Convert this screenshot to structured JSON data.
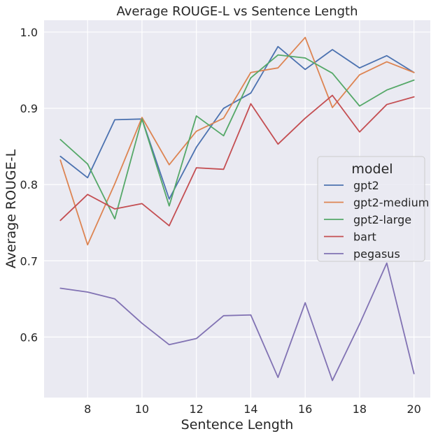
{
  "chart_data": {
    "type": "line",
    "title": "Average ROUGE-L vs Sentence Length",
    "xlabel": "Sentence Length",
    "ylabel": "Average ROUGE-L",
    "xlim": [
      6.4,
      20.6
    ],
    "ylim": [
      0.5206,
      1.0155
    ],
    "xticks": [
      8,
      10,
      12,
      14,
      16,
      18,
      20
    ],
    "yticks": [
      0.6,
      0.7,
      0.8,
      0.9,
      1.0
    ],
    "ytick_labels": [
      "0.6",
      "0.7",
      "0.8",
      "0.9",
      "1.0"
    ],
    "grid": true,
    "background": "#eaeaf2",
    "legend": {
      "title": "model",
      "placement": "center-right"
    },
    "x": [
      7,
      8,
      9,
      10,
      11,
      12,
      13,
      14,
      15,
      16,
      17,
      18,
      19,
      20
    ],
    "series": [
      {
        "name": "gpt2",
        "color": "#4c72b0",
        "values": [
          0.837,
          0.809,
          0.885,
          0.886,
          0.781,
          0.849,
          0.9,
          0.92,
          0.981,
          0.951,
          0.977,
          0.953,
          0.969,
          0.947
        ]
      },
      {
        "name": "gpt2-medium",
        "color": "#dd8452",
        "values": [
          0.832,
          0.721,
          0.801,
          0.888,
          0.826,
          0.87,
          0.887,
          0.947,
          0.953,
          0.993,
          0.901,
          0.944,
          0.961,
          0.947
        ]
      },
      {
        "name": "gpt2-large",
        "color": "#55a868",
        "values": [
          0.859,
          0.827,
          0.755,
          0.886,
          0.772,
          0.89,
          0.864,
          0.94,
          0.97,
          0.966,
          0.946,
          0.903,
          0.924,
          0.937
        ]
      },
      {
        "name": "bart",
        "color": "#c44e52",
        "values": [
          0.753,
          0.787,
          0.768,
          0.775,
          0.746,
          0.822,
          0.82,
          0.906,
          0.853,
          0.887,
          0.917,
          0.869,
          0.905,
          0.915
        ]
      },
      {
        "name": "pegasus",
        "color": "#8172b3",
        "values": [
          0.664,
          0.659,
          0.65,
          0.618,
          0.59,
          0.598,
          0.628,
          0.629,
          0.547,
          0.645,
          0.543,
          0.617,
          0.697,
          0.552
        ]
      }
    ]
  }
}
